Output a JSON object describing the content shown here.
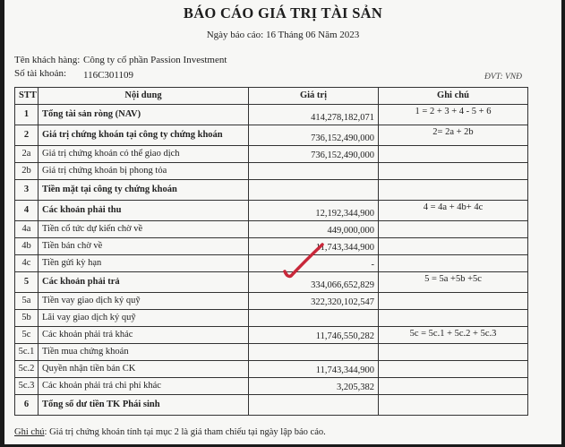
{
  "report": {
    "title": "BÁO CÁO GIÁ TRỊ TÀI SẢN",
    "date": "Ngày báo cáo: 16 Tháng 06 Năm 2023",
    "customer_label": "Tên khách hàng:",
    "customer_value": "Công ty cổ phần Passion Investment",
    "account_label": "Số tài khoản:",
    "account_value": "116C301109",
    "unit": "ĐVT: VNĐ"
  },
  "table": {
    "headers": [
      "STT",
      "Nội dung",
      "Giá trị",
      "Ghi chú"
    ],
    "rows": [
      {
        "stt": "1",
        "content": "Tổng tài sản ròng (NAV)",
        "value": "414,278,182,071",
        "note": "1 = 2 + 3 + 4 - 5 + 6",
        "bold": true
      },
      {
        "stt": "2",
        "content": "Giá trị chứng khoán tại công ty chứng khoán",
        "value": "736,152,490,000",
        "note": "2= 2a + 2b",
        "bold": true
      },
      {
        "stt": "2a",
        "content": "Giá trị chứng khoán có thể giao dịch",
        "value": "736,152,490,000",
        "note": "",
        "bold": false
      },
      {
        "stt": "2b",
        "content": "Giá trị chứng khoán bị phong tỏa",
        "value": "",
        "note": "",
        "bold": false
      },
      {
        "stt": "3",
        "content": "Tiền mặt tại công ty chứng khoán",
        "value": "",
        "note": "",
        "bold": true
      },
      {
        "stt": "4",
        "content": "Các khoản phải thu",
        "value": "12,192,344,900",
        "note": "4 = 4a + 4b+ 4c",
        "bold": true
      },
      {
        "stt": "4a",
        "content": "Tiền cổ tức dự kiến chờ về",
        "value": "449,000,000",
        "note": "",
        "bold": false
      },
      {
        "stt": "4b",
        "content": "Tiền bán chờ về",
        "value": "11,743,344,900",
        "note": "",
        "bold": false
      },
      {
        "stt": "4c",
        "content": "Tiền gửi kỳ hạn",
        "value": "-",
        "note": "",
        "bold": false
      },
      {
        "stt": "5",
        "content": "Các khoản phải trả",
        "value": "334,066,652,829",
        "note": "5 = 5a +5b +5c",
        "bold": true
      },
      {
        "stt": "5a",
        "content": "Tiền vay giao dịch ký quỹ",
        "value": "322,320,102,547",
        "note": "",
        "bold": false
      },
      {
        "stt": "5b",
        "content": "Lãi vay giao dịch ký quỹ",
        "value": "",
        "note": "",
        "bold": false
      },
      {
        "stt": "5c",
        "content": "Các khoản phải trả khác",
        "value": "11,746,550,282",
        "note": "5c = 5c.1 + 5c.2 + 5c.3",
        "bold": false
      },
      {
        "stt": "5c.1",
        "content": "Tiền mua chứng khoán",
        "value": "",
        "note": "",
        "bold": false
      },
      {
        "stt": "5c.2",
        "content": "Quyền nhận tiền bán CK",
        "value": "11,743,344,900",
        "note": "",
        "bold": false
      },
      {
        "stt": "5c.3",
        "content": "Các khoản phải trả chi phí khác",
        "value": "3,205,382",
        "note": "",
        "bold": false
      },
      {
        "stt": "6",
        "content": "Tổng số dư tiền TK Phái sinh",
        "value": "",
        "note": "",
        "bold": true
      }
    ]
  },
  "footnote": {
    "label": "Ghi chú",
    "text": ": Giá trị chứng khoán tính tại mục 2 là giá tham chiếu tại ngày lập báo cáo."
  },
  "colors": {
    "check_mark": "#c8283a",
    "paper": "#f7f7f5",
    "background": "#1a1a1a"
  },
  "icons": {
    "annotation": "red-check-mark"
  }
}
